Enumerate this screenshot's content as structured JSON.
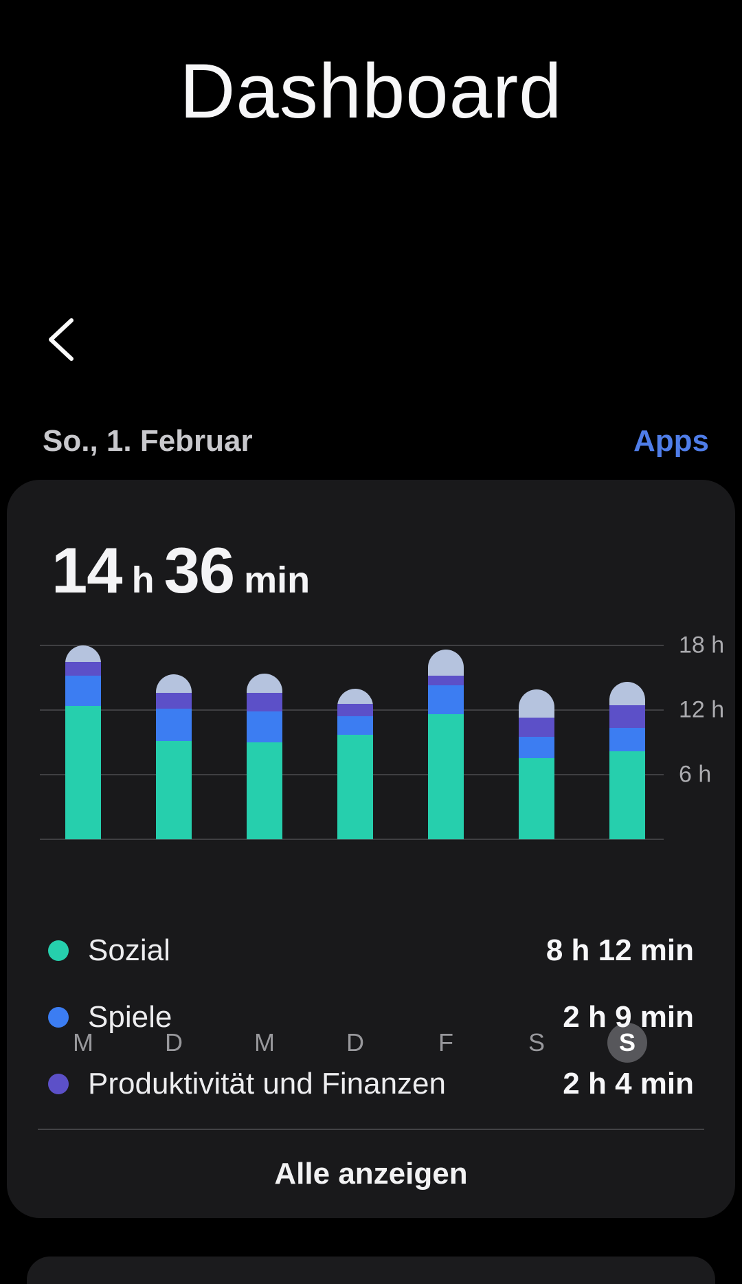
{
  "header": {
    "title": "Dashboard"
  },
  "date_row": {
    "date": "So., 1. Februar",
    "apps_link": "Apps"
  },
  "summary": {
    "hours": "14",
    "hours_unit": "h",
    "minutes": "36",
    "minutes_unit": "min"
  },
  "chart_data": {
    "type": "bar",
    "stacked": true,
    "title": "14 h 36 min",
    "categories": [
      "M",
      "D",
      "M",
      "D",
      "F",
      "S",
      "S"
    ],
    "selected_index": 6,
    "ylabel": "hours",
    "ylim": [
      0,
      18
    ],
    "yticks": [
      6,
      12,
      18
    ],
    "ytick_labels": [
      "6 h",
      "12 h",
      "18 h"
    ],
    "grid": true,
    "legend_position": "below",
    "series": [
      {
        "name": "Sozial",
        "color": "#26cfad",
        "values": [
          12.4,
          9.1,
          9.0,
          9.7,
          11.6,
          7.5,
          8.2
        ]
      },
      {
        "name": "Spiele",
        "color": "#3c7df2",
        "values": [
          2.8,
          3.0,
          2.9,
          1.7,
          2.7,
          2.0,
          2.15
        ]
      },
      {
        "name": "Produktivität und Finanzen",
        "color": "#5c50c8",
        "values": [
          1.3,
          1.5,
          1.7,
          1.2,
          0.9,
          1.8,
          2.07
        ]
      },
      {
        "name": "other",
        "color": "#b5c3de",
        "values": [
          1.5,
          1.7,
          1.8,
          1.4,
          2.4,
          2.6,
          2.18
        ]
      }
    ]
  },
  "legend": {
    "items": [
      {
        "label": "Sozial",
        "value": "8 h 12 min",
        "color": "#26cfad"
      },
      {
        "label": "Spiele",
        "value": "2 h 9 min",
        "color": "#3c7df2"
      },
      {
        "label": "Produktivität und Finanzen",
        "value": "2 h 4 min",
        "color": "#5c50c8"
      }
    ]
  },
  "footer": {
    "show_all_label": "Alle anzeigen"
  },
  "colors": {
    "page_background": "#000000",
    "card_background": "#19191b",
    "accent_blue": "#4f7de8",
    "selected_day_circle": "#57575b",
    "gridline": "#3f3f42"
  }
}
